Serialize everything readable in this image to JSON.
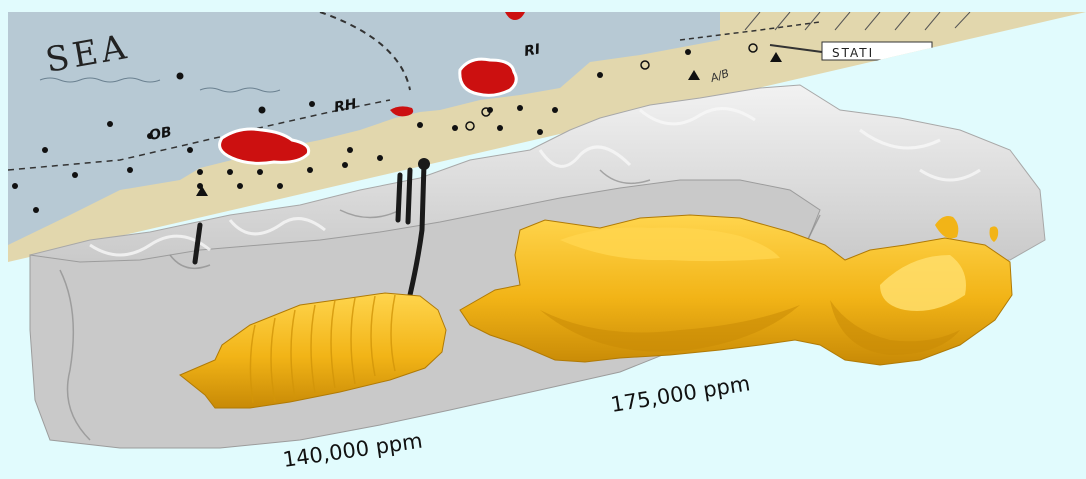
{
  "map": {
    "sea_label": "SEA",
    "well_labels": [
      "RI",
      "RH",
      "OB",
      "STATI",
      "A/B"
    ]
  },
  "annotations": {
    "left_cavern": "140,000 ppm",
    "right_cavern": "175,000 ppm"
  },
  "colors": {
    "sky": "#e1fbfd",
    "map_water": "#b7c9d4",
    "map_land": "#e2d7ad",
    "salt_surface": "#c8c8c8",
    "cavern_fill": "#f1b414",
    "cavern_highlight": "#ffd24a",
    "well_marker": "#cc1010"
  }
}
